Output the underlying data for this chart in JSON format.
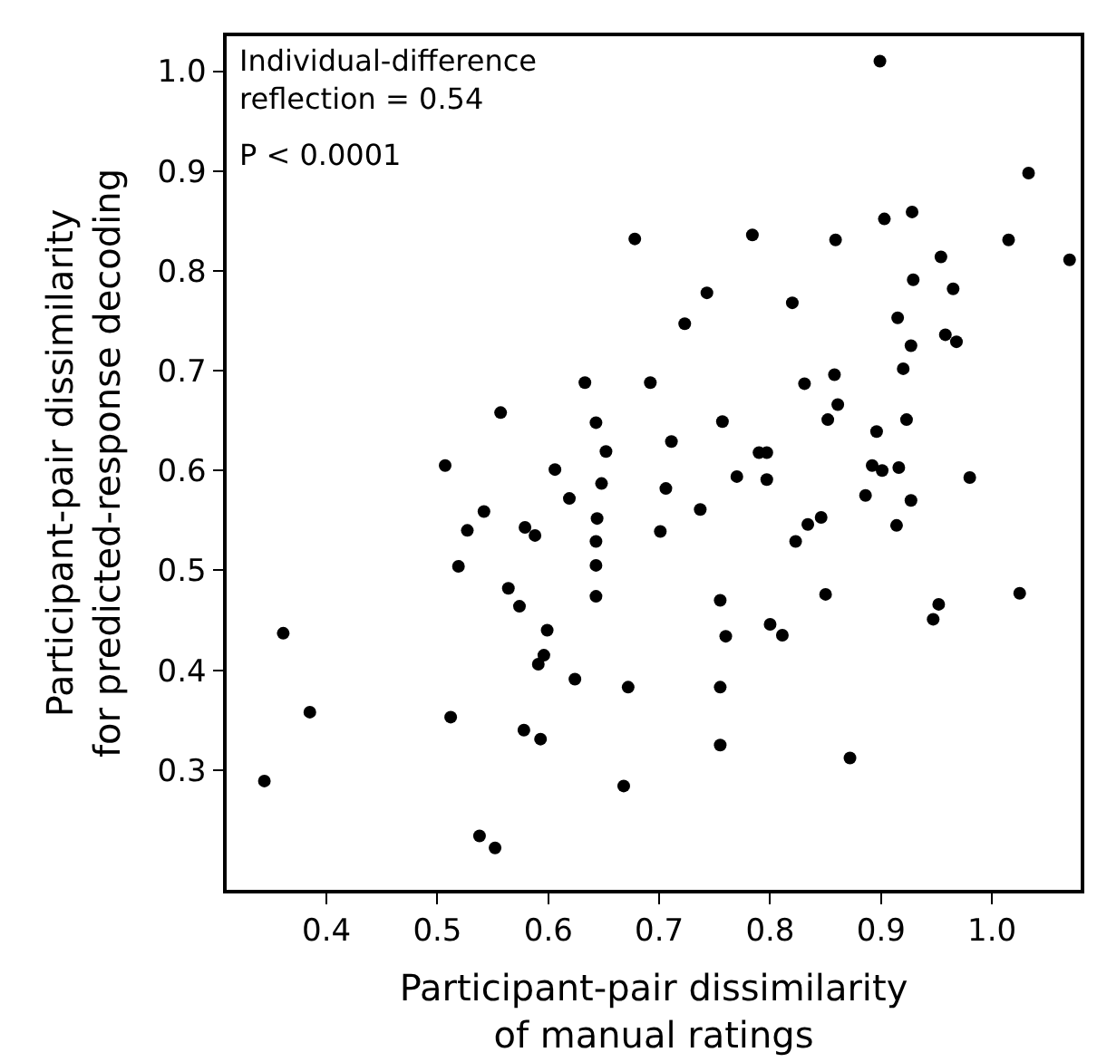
{
  "chart_data": {
    "type": "scatter",
    "xlabel": "Participant-pair dissimilarity\nof manual ratings",
    "ylabel": "Participant-pair dissimilarity\nfor predicted-response decoding",
    "annotations": [
      "Individual-difference\nreflection = 0.54",
      "P < 0.0001"
    ],
    "x": [
      0.678,
      0.633,
      0.557,
      0.643,
      0.652,
      0.507,
      0.606,
      0.648,
      0.619,
      0.542,
      0.644,
      0.527,
      0.579,
      0.588,
      0.643,
      0.519,
      0.643,
      0.564,
      0.574,
      0.643,
      0.361,
      0.599,
      0.596,
      0.591,
      0.624,
      0.672,
      0.385,
      0.512,
      0.578,
      0.593,
      0.344,
      0.668,
      0.538,
      0.552,
      0.737,
      0.701,
      0.834,
      0.846,
      0.823,
      0.914,
      0.755,
      0.85,
      1.025,
      0.952,
      0.947,
      0.8,
      0.811,
      0.76,
      0.755,
      0.755,
      0.872,
      0.899,
      1.033,
      0.784,
      0.859,
      0.903,
      0.928,
      1.015,
      1.07,
      0.954,
      0.743,
      0.82,
      0.929,
      0.965,
      0.723,
      0.915,
      0.958,
      0.968,
      0.927,
      0.92,
      0.692,
      0.831,
      0.858,
      0.861,
      0.852,
      0.757,
      0.923,
      0.711,
      0.896,
      0.79,
      0.797,
      0.892,
      0.901,
      0.916,
      0.98,
      0.77,
      0.797,
      0.706,
      0.886,
      0.927
    ],
    "series": [
      {
        "color": "#000000",
        "values": [
          0.832,
          0.688,
          0.658,
          0.648,
          0.619,
          0.605,
          0.601,
          0.587,
          0.572,
          0.559,
          0.552,
          0.54,
          0.543,
          0.535,
          0.529,
          0.504,
          0.505,
          0.482,
          0.464,
          0.474,
          0.437,
          0.44,
          0.415,
          0.406,
          0.391,
          0.383,
          0.358,
          0.353,
          0.34,
          0.331,
          0.289,
          0.284,
          0.234,
          0.222,
          0.561,
          0.539,
          0.546,
          0.553,
          0.529,
          0.545,
          0.47,
          0.476,
          0.477,
          0.466,
          0.451,
          0.446,
          0.435,
          0.434,
          0.383,
          0.325,
          0.312,
          1.01,
          0.898,
          0.836,
          0.831,
          0.852,
          0.859,
          0.831,
          0.811,
          0.814,
          0.778,
          0.768,
          0.791,
          0.782,
          0.747,
          0.753,
          0.736,
          0.729,
          0.725,
          0.702,
          0.688,
          0.687,
          0.696,
          0.666,
          0.651,
          0.649,
          0.651,
          0.629,
          0.639,
          0.618,
          0.618,
          0.605,
          0.6,
          0.603,
          0.593,
          0.594,
          0.591,
          0.582,
          0.575,
          0.57
        ]
      }
    ],
    "xlim": [
      0.31,
      1.08
    ],
    "ylim": [
      0.18,
      1.035
    ],
    "xticks": [
      {
        "value": 0.4,
        "label": "0.4"
      },
      {
        "value": 0.5,
        "label": "0.5"
      },
      {
        "value": 0.6,
        "label": "0.6"
      },
      {
        "value": 0.7,
        "label": "0.7"
      },
      {
        "value": 0.8,
        "label": "0.8"
      },
      {
        "value": 0.9,
        "label": "0.9"
      },
      {
        "value": 1.0,
        "label": "1.0"
      }
    ],
    "yticks": [
      {
        "value": 0.3,
        "label": "0.3"
      },
      {
        "value": 0.4,
        "label": "0.4"
      },
      {
        "value": 0.5,
        "label": "0.5"
      },
      {
        "value": 0.6,
        "label": "0.6"
      },
      {
        "value": 0.7,
        "label": "0.7"
      },
      {
        "value": 0.8,
        "label": "0.8"
      },
      {
        "value": 0.9,
        "label": "0.9"
      },
      {
        "value": 1.0,
        "label": "1.0"
      }
    ],
    "marker": "circle"
  }
}
